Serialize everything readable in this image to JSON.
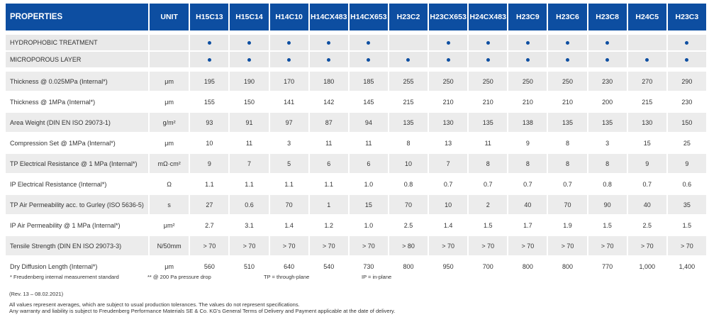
{
  "header": {
    "properties": "PROPERTIES",
    "unit": "UNIT",
    "products": [
      "H15C13",
      "H15C14",
      "H14C10",
      "H14CX483",
      "H14CX653",
      "H23C2",
      "H23CX653",
      "H24CX483",
      "H23C9",
      "H23C6",
      "H23C8",
      "H24C5",
      "H23C3"
    ]
  },
  "features": [
    {
      "label": "HYDROPHOBIC TREATMENT",
      "marks": [
        true,
        true,
        true,
        true,
        true,
        false,
        true,
        true,
        true,
        true,
        true,
        false,
        true
      ]
    },
    {
      "label": "MICROPOROUS LAYER",
      "marks": [
        true,
        true,
        true,
        true,
        true,
        true,
        true,
        true,
        true,
        true,
        true,
        true,
        true
      ]
    }
  ],
  "rows": [
    {
      "label": "Thickness @ 0.025MPa (Internal*)",
      "unit": "μm",
      "values": [
        "195",
        "190",
        "170",
        "180",
        "185",
        "255",
        "250",
        "250",
        "250",
        "250",
        "230",
        "270",
        "290"
      ]
    },
    {
      "label": "Thickness @ 1MPa (Internal*)",
      "unit": "μm",
      "values": [
        "155",
        "150",
        "141",
        "142",
        "145",
        "215",
        "210",
        "210",
        "210",
        "210",
        "200",
        "215",
        "230"
      ]
    },
    {
      "label": "Area Weight (DIN EN ISO 29073-1)",
      "unit": "g/m²",
      "values": [
        "93",
        "91",
        "97",
        "87",
        "94",
        "135",
        "130",
        "135",
        "138",
        "135",
        "135",
        "130",
        "150"
      ]
    },
    {
      "label": "Compression Set @ 1MPa (Internal*)",
      "unit": "μm",
      "values": [
        "10",
        "11",
        "3",
        "11",
        "11",
        "8",
        "13",
        "11",
        "9",
        "8",
        "3",
        "15",
        "25"
      ]
    },
    {
      "label": "TP Electrical Resistance @ 1 MPa (Internal*)",
      "unit": "mΩ·cm²",
      "values": [
        "9",
        "7",
        "5",
        "6",
        "6",
        "10",
        "7",
        "8",
        "8",
        "8",
        "8",
        "9",
        "9"
      ]
    },
    {
      "label": "IP Electrical Resistance (Internal*)",
      "unit": "Ω",
      "values": [
        "1.1",
        "1.1",
        "1.1",
        "1.1",
        "1.0",
        "0.8",
        "0.7",
        "0.7",
        "0.7",
        "0.7",
        "0.8",
        "0.7",
        "0.6"
      ]
    },
    {
      "label": "TP Air Permeability acc. to Gurley (ISO 5636-5)",
      "unit": "s",
      "values": [
        "27",
        "0.6",
        "70",
        "1",
        "15",
        "70",
        "10",
        "2",
        "40",
        "70",
        "90",
        "40",
        "35"
      ]
    },
    {
      "label": "IP Air Permeability @ 1 MPa (Internal*)",
      "unit": "μm²",
      "values": [
        "2.7",
        "3.1",
        "1.4",
        "1.2",
        "1.0",
        "2.5",
        "1.4",
        "1.5",
        "1.7",
        "1.9",
        "1.5",
        "2.5",
        "1.5"
      ]
    },
    {
      "label": "Tensile Strength (DIN EN ISO 29073-3)",
      "unit": "N/50mm",
      "values": [
        "> 70",
        "> 70",
        "> 70",
        "> 70",
        "> 70",
        "> 80",
        "> 70",
        "> 70",
        "> 70",
        "> 70",
        "> 70",
        "> 70",
        "> 70"
      ]
    },
    {
      "label": "Dry Diffusion Length (Internal*)",
      "unit": "μm",
      "values": [
        "560",
        "510",
        "640",
        "540",
        "730",
        "800",
        "950",
        "700",
        "800",
        "800",
        "770",
        "1,000",
        "1,400"
      ]
    }
  ],
  "notes": {
    "internal": "* Freudenberg internal measurement standard",
    "pressure": "** @ 200 Pa pressure drop",
    "tp": "TP = through-plane",
    "ip": "IP = in-plane"
  },
  "revision": "(Rev. 13 – 08.02.2021)",
  "disclaimer": [
    "All values represent averages, which are subject to usual production tolerances. The values do not represent specifications.",
    "Any warranty and liability is subject to Freudenberg Performance Materials SE & Co. KG's General Terms of Delivery and Payment applicable at the date of delivery."
  ],
  "colors": {
    "brand": "#0d4ea1",
    "shade": "#ececec"
  }
}
